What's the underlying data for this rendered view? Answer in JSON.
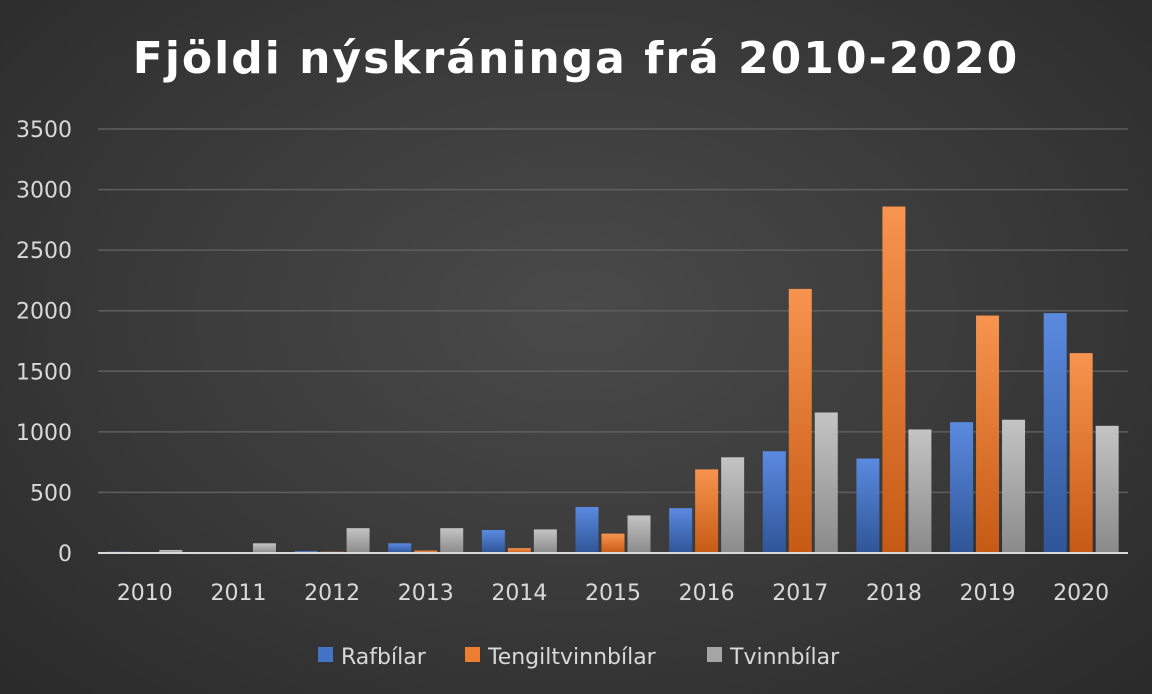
{
  "chart_data": {
    "type": "bar",
    "title": "Fjöldi nýskráninga frá 2010-2020",
    "xlabel": "",
    "ylabel": "",
    "ylim": [
      0,
      3500
    ],
    "yticks": [
      "0",
      "500",
      "1000",
      "1500",
      "2000",
      "2500",
      "3000",
      "3500"
    ],
    "categories": [
      "2010",
      "2011",
      "2012",
      "2013",
      "2014",
      "2015",
      "2016",
      "2017",
      "2018",
      "2019",
      "2020"
    ],
    "series": [
      {
        "name": "Rafbílar",
        "color": "#4472c4",
        "values": [
          10,
          5,
          15,
          80,
          190,
          380,
          370,
          840,
          780,
          1080,
          1980
        ]
      },
      {
        "name": "Tengiltvinnbílar",
        "color": "#ed7d31",
        "values": [
          5,
          5,
          10,
          20,
          40,
          160,
          690,
          2180,
          2860,
          1960,
          1650
        ]
      },
      {
        "name": "Tvinnbílar",
        "color": "#a5a5a5",
        "values": [
          25,
          80,
          205,
          205,
          195,
          310,
          790,
          1160,
          1020,
          1100,
          1050
        ]
      }
    ],
    "grid": true,
    "legend_position": "bottom"
  }
}
